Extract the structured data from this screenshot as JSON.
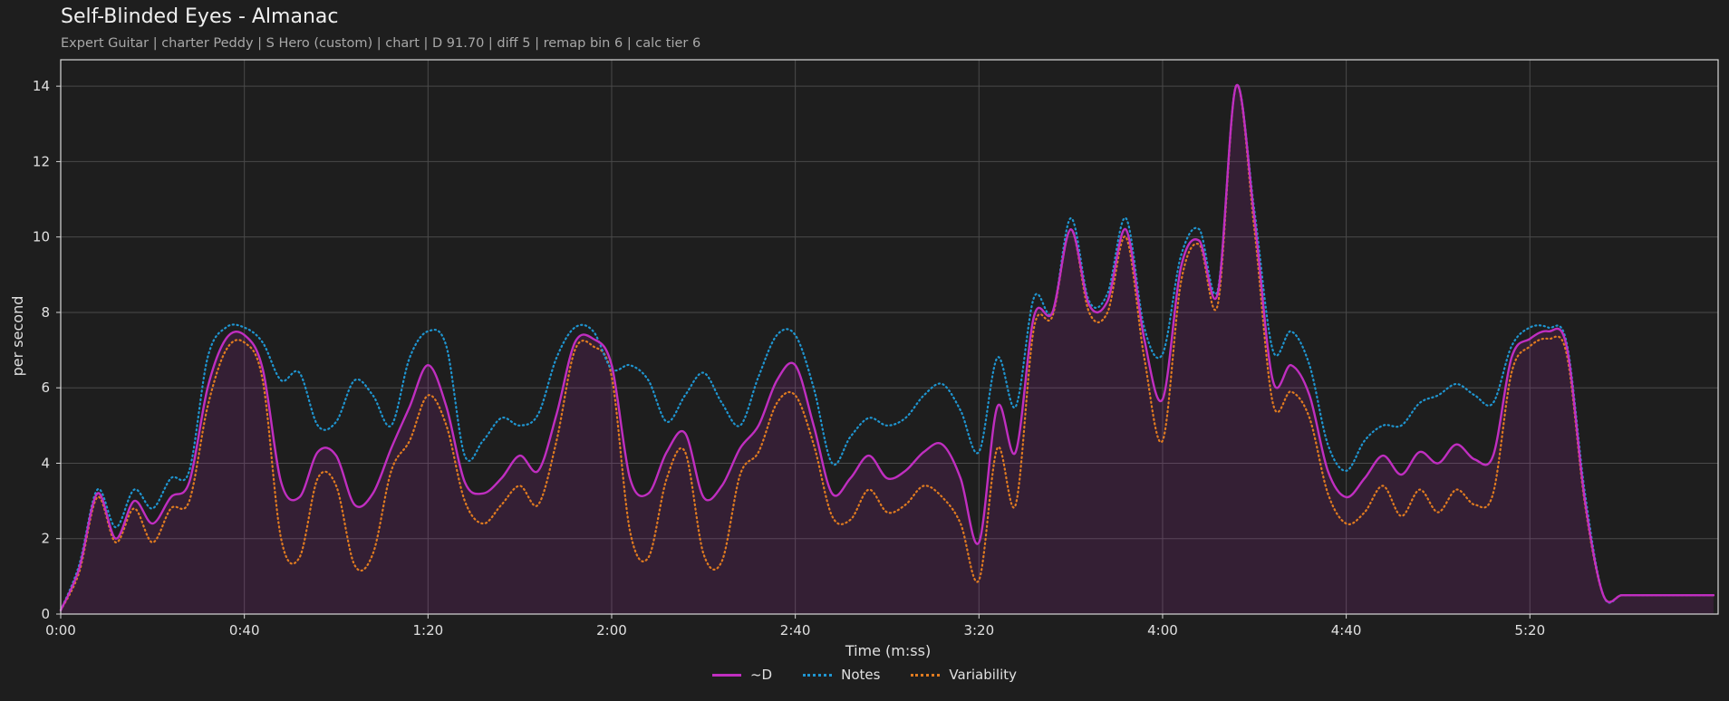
{
  "chart_data": {
    "type": "line",
    "title": "Self-Blinded Eyes - Almanac",
    "subtitle": "Expert Guitar  |  charter Peddy  |  S Hero (custom)  |  chart  |  D 91.70  |  diff 5  |  remap bin 6  |  calc tier 6",
    "xlabel": "Time (m:ss)",
    "ylabel": "per second",
    "xlim": [
      0,
      361
    ],
    "ylim": [
      0,
      14.7
    ],
    "x_ticks": [
      0,
      40,
      80,
      120,
      160,
      200,
      240,
      280,
      320
    ],
    "x_tick_labels": [
      "0:00",
      "0:40",
      "1:20",
      "2:00",
      "2:40",
      "3:20",
      "4:00",
      "4:40",
      "5:20"
    ],
    "y_ticks": [
      0,
      2,
      4,
      6,
      8,
      10,
      12,
      14
    ],
    "y_tick_labels": [
      "0",
      "2",
      "4",
      "6",
      "8",
      "10",
      "12",
      "14"
    ],
    "grid": true,
    "legend_placement": "bottom-center",
    "x": [
      0,
      4,
      8,
      12,
      16,
      20,
      24,
      28,
      32,
      36,
      40,
      44,
      48,
      52,
      56,
      60,
      64,
      68,
      72,
      76,
      80,
      84,
      88,
      92,
      96,
      100,
      104,
      108,
      112,
      116,
      120,
      124,
      128,
      132,
      136,
      140,
      144,
      148,
      152,
      156,
      160,
      164,
      168,
      172,
      176,
      180,
      184,
      188,
      192,
      196,
      200,
      204,
      208,
      212,
      216,
      220,
      224,
      228,
      232,
      236,
      240,
      244,
      248,
      252,
      256,
      260,
      264,
      268,
      272,
      276,
      280,
      284,
      288,
      292,
      296,
      300,
      304,
      308,
      312,
      316,
      320,
      324,
      328,
      332,
      336,
      340,
      344,
      348,
      352,
      356,
      360
    ],
    "series": [
      {
        "name": "~D",
        "color": "#c02ec0",
        "style": "solid",
        "fill": true,
        "values": [
          0.1,
          1.2,
          3.2,
          2.0,
          3.0,
          2.4,
          3.1,
          3.5,
          6.0,
          7.3,
          7.4,
          6.5,
          3.5,
          3.1,
          4.3,
          4.2,
          2.9,
          3.2,
          4.4,
          5.5,
          6.6,
          5.5,
          3.5,
          3.2,
          3.6,
          4.2,
          3.8,
          5.3,
          7.2,
          7.3,
          6.6,
          3.6,
          3.2,
          4.3,
          4.8,
          3.1,
          3.4,
          4.4,
          5.0,
          6.2,
          6.6,
          5.0,
          3.2,
          3.6,
          4.2,
          3.6,
          3.8,
          4.3,
          4.5,
          3.6,
          1.9,
          5.5,
          4.3,
          7.9,
          8.0,
          10.2,
          8.2,
          8.3,
          10.2,
          7.3,
          5.7,
          9.2,
          9.9,
          8.5,
          14.0,
          10.5,
          6.2,
          6.6,
          5.8,
          3.8,
          3.1,
          3.6,
          4.2,
          3.7,
          4.3,
          4.0,
          4.5,
          4.1,
          4.2,
          6.8,
          7.3,
          7.5,
          7.1,
          3.0,
          0.5,
          0.5,
          0.5,
          0.5,
          0.5,
          0.5,
          0.5
        ]
      },
      {
        "name": "Notes",
        "color": "#1f95d0",
        "style": "dotted",
        "fill": false,
        "values": [
          0.1,
          1.3,
          3.3,
          2.3,
          3.3,
          2.8,
          3.6,
          3.8,
          6.8,
          7.6,
          7.6,
          7.2,
          6.2,
          6.4,
          5.0,
          5.1,
          6.2,
          5.8,
          5.0,
          6.8,
          7.5,
          7.1,
          4.2,
          4.6,
          5.2,
          5.0,
          5.3,
          6.8,
          7.6,
          7.5,
          6.5,
          6.6,
          6.2,
          5.1,
          5.8,
          6.4,
          5.6,
          5.0,
          6.3,
          7.4,
          7.4,
          6.0,
          4.0,
          4.7,
          5.2,
          5.0,
          5.2,
          5.8,
          6.1,
          5.4,
          4.3,
          6.8,
          5.5,
          8.4,
          8.0,
          10.5,
          8.3,
          8.5,
          10.5,
          7.6,
          6.9,
          9.5,
          10.2,
          8.6,
          14.0,
          10.7,
          7.0,
          7.5,
          6.6,
          4.5,
          3.8,
          4.6,
          5.0,
          5.0,
          5.6,
          5.8,
          6.1,
          5.8,
          5.6,
          7.1,
          7.6,
          7.6,
          7.2,
          3.2,
          0.5,
          0.5,
          0.5,
          0.5,
          0.5,
          0.5,
          0.5
        ]
      },
      {
        "name": "Variability",
        "color": "#e07b20",
        "style": "dotted",
        "fill": false,
        "values": [
          0.1,
          1.1,
          3.1,
          1.9,
          2.8,
          1.9,
          2.8,
          3.0,
          5.5,
          7.0,
          7.2,
          6.2,
          2.0,
          1.5,
          3.6,
          3.4,
          1.3,
          1.6,
          3.8,
          4.6,
          5.8,
          5.0,
          3.0,
          2.4,
          2.9,
          3.4,
          2.9,
          4.6,
          7.0,
          7.1,
          6.3,
          2.2,
          1.5,
          3.6,
          4.3,
          1.6,
          1.4,
          3.7,
          4.3,
          5.6,
          5.8,
          4.5,
          2.6,
          2.5,
          3.3,
          2.7,
          2.9,
          3.4,
          3.1,
          2.4,
          0.9,
          4.4,
          2.9,
          7.6,
          7.9,
          10.2,
          8.0,
          8.0,
          10.0,
          6.8,
          4.6,
          8.8,
          9.8,
          8.2,
          14.0,
          10.2,
          5.6,
          5.9,
          5.2,
          3.2,
          2.4,
          2.7,
          3.4,
          2.6,
          3.3,
          2.7,
          3.3,
          2.9,
          3.2,
          6.4,
          7.1,
          7.3,
          6.9,
          2.9,
          0.5,
          0.5,
          0.5,
          0.5,
          0.5,
          0.5,
          0.5
        ]
      }
    ]
  }
}
